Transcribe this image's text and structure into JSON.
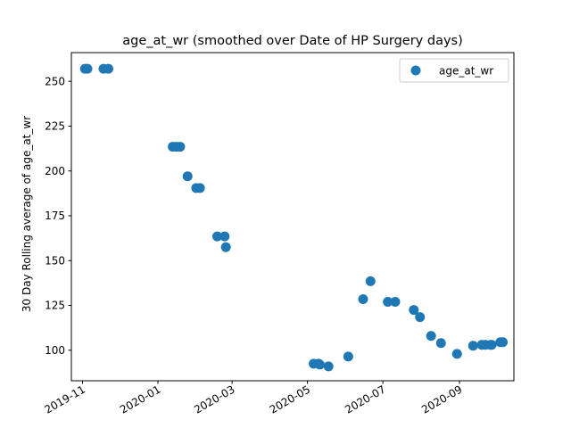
{
  "chart_data": {
    "type": "scatter",
    "title": "age_at_wr (smoothed over Date of HP Surgery days)",
    "xlabel": "",
    "ylabel": "30 Day Rolling average of age_at_wr",
    "xlim": [
      "2019-10-23",
      "2020-10-15"
    ],
    "ylim": [
      83,
      266
    ],
    "x_ticks": [
      {
        "date": "2019-11-01",
        "label": "2019-11"
      },
      {
        "date": "2020-01-01",
        "label": "2020-01"
      },
      {
        "date": "2020-03-01",
        "label": "2020-03"
      },
      {
        "date": "2020-05-01",
        "label": "2020-05"
      },
      {
        "date": "2020-07-01",
        "label": "2020-07"
      },
      {
        "date": "2020-09-01",
        "label": "2020-09"
      }
    ],
    "y_ticks": [
      100,
      125,
      150,
      175,
      200,
      225,
      250
    ],
    "grid": false,
    "legend": "top-right",
    "series": [
      {
        "name": "age_at_wr",
        "color": "#1f77b4",
        "points": [
          {
            "x": "2019-11-03",
            "y": 257
          },
          {
            "x": "2019-11-05",
            "y": 257
          },
          {
            "x": "2019-11-18",
            "y": 257
          },
          {
            "x": "2019-11-22",
            "y": 257
          },
          {
            "x": "2020-01-13",
            "y": 213.5
          },
          {
            "x": "2020-01-16",
            "y": 213.5
          },
          {
            "x": "2020-01-19",
            "y": 213.5
          },
          {
            "x": "2020-01-25",
            "y": 197
          },
          {
            "x": "2020-02-01",
            "y": 190.5
          },
          {
            "x": "2020-02-04",
            "y": 190.5
          },
          {
            "x": "2020-02-18",
            "y": 163.5
          },
          {
            "x": "2020-02-24",
            "y": 163.5
          },
          {
            "x": "2020-02-25",
            "y": 157.5
          },
          {
            "x": "2020-05-06",
            "y": 92.5
          },
          {
            "x": "2020-05-10",
            "y": 92.5
          },
          {
            "x": "2020-05-11",
            "y": 92
          },
          {
            "x": "2020-05-18",
            "y": 91
          },
          {
            "x": "2020-06-03",
            "y": 96.5
          },
          {
            "x": "2020-06-15",
            "y": 128.5
          },
          {
            "x": "2020-06-21",
            "y": 138.5
          },
          {
            "x": "2020-07-05",
            "y": 127
          },
          {
            "x": "2020-07-11",
            "y": 127
          },
          {
            "x": "2020-07-26",
            "y": 122.5
          },
          {
            "x": "2020-07-31",
            "y": 118.5
          },
          {
            "x": "2020-08-09",
            "y": 108
          },
          {
            "x": "2020-08-17",
            "y": 104
          },
          {
            "x": "2020-08-30",
            "y": 98
          },
          {
            "x": "2020-09-12",
            "y": 102.5
          },
          {
            "x": "2020-09-19",
            "y": 103
          },
          {
            "x": "2020-09-22",
            "y": 103
          },
          {
            "x": "2020-09-26",
            "y": 103
          },
          {
            "x": "2020-09-27",
            "y": 103
          },
          {
            "x": "2020-10-04",
            "y": 104.5
          },
          {
            "x": "2020-10-06",
            "y": 104.5
          }
        ]
      }
    ]
  }
}
